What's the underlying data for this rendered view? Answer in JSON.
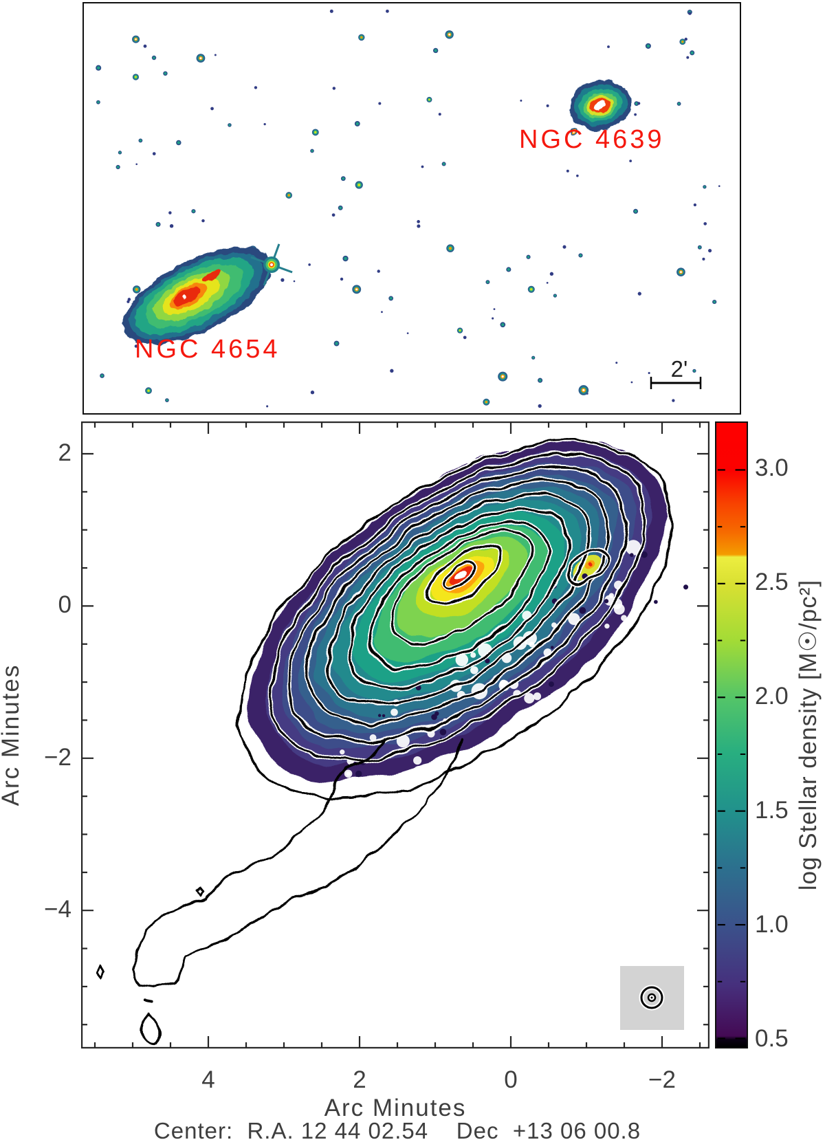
{
  "top_panel": {
    "galaxy_labels": [
      {
        "id": "ngc4639",
        "text": "NGC 4639"
      },
      {
        "id": "ngc4654",
        "text": "NGC 4654"
      }
    ],
    "label_color": "#f5180e",
    "scalebar_label": "2'"
  },
  "map_panel": {
    "x_axis": {
      "title": "Arc Minutes",
      "start": 5.5,
      "end": -2.5,
      "step": 0.5,
      "majors": [
        {
          "v": 4,
          "label": "4"
        },
        {
          "v": 2,
          "label": "2"
        },
        {
          "v": 0,
          "label": "0"
        },
        {
          "v": -2,
          "label": "−2"
        }
      ]
    },
    "y_axis": {
      "title": "Arc Minutes",
      "start": 2,
      "end": -5.5,
      "step": 0.5,
      "majors": [
        {
          "v": 2,
          "label": "2"
        },
        {
          "v": 0,
          "label": "0"
        },
        {
          "v": -2,
          "label": "−2"
        },
        {
          "v": -4,
          "label": "−4"
        }
      ]
    },
    "caption": "Center:  R.A. 12 44 02.54    Dec  +13 06 00.8"
  },
  "colorbar": {
    "title": "log Stellar density [M☉/pc²]",
    "range": [
      0.462,
      3.207
    ],
    "majors": [
      {
        "v": 3.0,
        "label": "3.0"
      },
      {
        "v": 2.5,
        "label": "2.5"
      },
      {
        "v": 2.0,
        "label": "2.0"
      },
      {
        "v": 1.5,
        "label": "1.5"
      },
      {
        "v": 1.0,
        "label": "1.0"
      },
      {
        "v": 0.5,
        "label": "0.5"
      }
    ],
    "minors": [
      2.75,
      2.25,
      1.75,
      1.25,
      0.75
    ],
    "stops": [
      [
        0,
        "#ff0000"
      ],
      [
        0.076,
        "#fb0100"
      ],
      [
        0.13,
        "#f84300"
      ],
      [
        0.175,
        "#f66a00"
      ],
      [
        0.211,
        "#f49c00"
      ],
      [
        0.215,
        "#edee40"
      ],
      [
        0.258,
        "#d9e032"
      ],
      [
        0.35,
        "#a2db36"
      ],
      [
        0.44,
        "#54c568"
      ],
      [
        0.53,
        "#28ae80"
      ],
      [
        0.622,
        "#21918c"
      ],
      [
        0.71,
        "#2c718e"
      ],
      [
        0.804,
        "#3b528b"
      ],
      [
        0.9,
        "#46307d"
      ],
      [
        0.982,
        "#440a54"
      ],
      [
        0.988,
        "#0a0014"
      ],
      [
        1,
        "#000000"
      ]
    ]
  },
  "chart_data": {
    "type": "heatmap",
    "panels": [
      {
        "name": "finder-contour-image",
        "description": "Optical contour image of the field containing NGC 4654 and NGC 4639 with foreground stars",
        "objects": [
          "NGC 4654",
          "NGC 4639"
        ],
        "object_positions_fraction": {
          "NGC 4654": [
            0.18,
            0.72
          ],
          "NGC 4639": [
            0.66,
            0.25
          ]
        },
        "scalebar_label": "2'",
        "scalebar_arcmin": 2
      },
      {
        "name": "stellar-surface-density-map",
        "xlabel": "Arc Minutes",
        "ylabel": "Arc Minutes",
        "x_tick_values": [
          4,
          2,
          0,
          -2
        ],
        "y_tick_values": [
          2,
          0,
          -2,
          -4
        ],
        "x_range_arcmin": [
          5.7,
          -2.6
        ],
        "y_range_arcmin": [
          2.4,
          -5.8
        ],
        "colorbar_label": "log Stellar density [M☉/pc²]",
        "colorbar_tick_values": [
          3.0,
          2.5,
          2.0,
          1.5,
          1.0,
          0.5
        ],
        "colorbar_range": [
          0.46,
          3.2
        ],
        "peak_value_log": 3.2,
        "peak_position_arcmin": [
          0.45,
          0.3
        ],
        "center_label": "R.A. 12 44 02.54  Dec +13 06 00.8",
        "features": [
          "elongated disk inclined ~35 deg with nested black stellar contours",
          "faint tidal-tail contour extending to about (4.5', -5')",
          "grey beam-indicator box at lower right"
        ]
      }
    ]
  }
}
